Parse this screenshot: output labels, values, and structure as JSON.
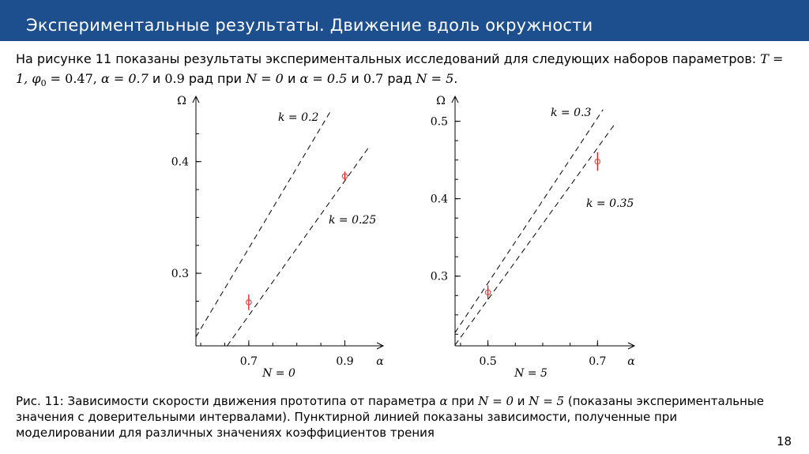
{
  "header": {
    "title": "Экспериментальные результаты. Движение вдоль окружности"
  },
  "intro": {
    "t1": "На рисунке 11 показаны результаты экспериментальных исследований для следующих наборов параметров: ",
    "m1": "T = 1, φ",
    "m1sub": "0",
    "m2": " = 0.47, ",
    "m3": "α = 0.7",
    "t2": " и ",
    "m4": "0.9",
    "t3": " рад при ",
    "m5": "N = 0",
    "t4": " и ",
    "m6": "α = 0.5",
    "t5": " и ",
    "m7": "0.7",
    "t6": " рад ",
    "m8": "N = 5",
    "t7": "."
  },
  "chart_data": [
    {
      "type": "scatter",
      "ylabel": "Ω",
      "xlabel": "α",
      "subtitle": "N = 0",
      "xticks": [
        "0.7",
        "0.9"
      ],
      "yticks": [
        "0.3",
        "0.4"
      ],
      "xlim": [
        0.59,
        0.96
      ],
      "ylim": [
        0.235,
        0.45
      ],
      "points": [
        {
          "x": 0.7,
          "y": 0.274,
          "err": 0.007
        },
        {
          "x": 0.9,
          "y": 0.387,
          "err": 0.004
        }
      ],
      "lines": [
        {
          "label": "k = 0.2",
          "x": [
            0.59,
            0.87
          ],
          "y": [
            0.243,
            0.445
          ]
        },
        {
          "label": "k = 0.25",
          "x": [
            0.655,
            0.95
          ],
          "y": [
            0.235,
            0.413
          ]
        }
      ]
    },
    {
      "type": "scatter",
      "ylabel": "Ω",
      "xlabel": "α",
      "subtitle": "N = 5",
      "xticks": [
        "0.5",
        "0.7"
      ],
      "yticks": [
        "0.3",
        "0.4",
        "0.5"
      ],
      "xlim": [
        0.44,
        0.75
      ],
      "ylim": [
        0.21,
        0.52
      ],
      "points": [
        {
          "x": 0.5,
          "y": 0.279,
          "err": 0.009
        },
        {
          "x": 0.7,
          "y": 0.448,
          "err": 0.012
        }
      ],
      "lines": [
        {
          "label": "k = 0.3",
          "x": [
            0.44,
            0.71
          ],
          "y": [
            0.227,
            0.515
          ]
        },
        {
          "label": "k = 0.35",
          "x": [
            0.44,
            0.73
          ],
          "y": [
            0.211,
            0.495
          ]
        }
      ]
    }
  ],
  "caption": {
    "t1": "Рис. 11: Зависимости скорости движения прототипа от параметра ",
    "m1": "α",
    "t2": " при ",
    "m2": "N = 0",
    "t3": " и ",
    "m3": "N = 5",
    "t4": " (показаны экспериментальные значения с доверительными интервалами). Пунктирной линией показаны зависимости, полученные при моделировании для различных значениях коэффициентов трения"
  },
  "page": {
    "number": "18"
  },
  "colors": {
    "header": "#1d4f8e",
    "points": "#d9534f",
    "errorbars": "#e8000b"
  }
}
